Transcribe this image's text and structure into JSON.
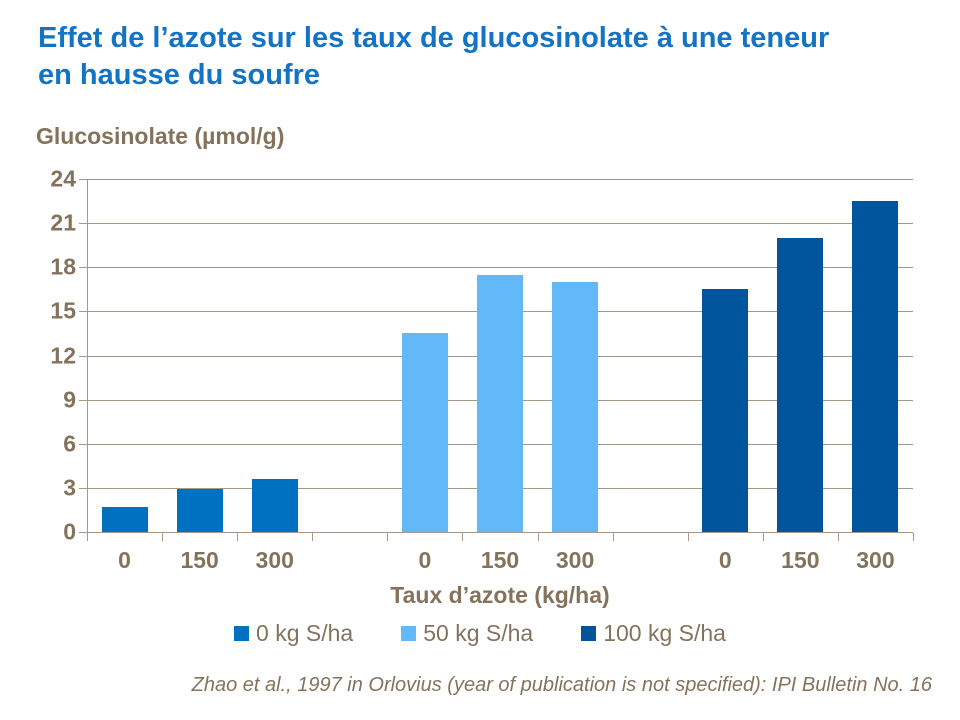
{
  "title": {
    "line1": "Effet de l’azote sur les taux de glucosinolate à une teneur",
    "line2": "en hausse du soufre"
  },
  "citation": "Zhao et al., 1997 in Orlovius (year of publication is not specified): IPI Bulletin No. 16",
  "colors": {
    "title_text": "#1373C5",
    "axis_text": "#84735C",
    "gridline": "#A59886",
    "series_blue": "#0070C0",
    "series_light_blue": "#63B9F7",
    "series_navy": "#00559C"
  },
  "chart_data": {
    "type": "bar",
    "title": "Effet de l’azote sur les taux de glucosinolate à une teneur en hausse du soufre",
    "ylabel": "Glucosinolate (µmol/g)",
    "xlabel": "Taux d’azote (kg/ha)",
    "categories": [
      "0",
      "150",
      "300"
    ],
    "series": [
      {
        "name": "0 kg S/ha",
        "color": "#0070C0",
        "values": [
          1.7,
          2.9,
          3.6
        ]
      },
      {
        "name": "50 kg S/ha",
        "color": "#63B9F7",
        "values": [
          13.5,
          17.5,
          17.0
        ]
      },
      {
        "name": "100 kg S/ha",
        "color": "#00559C",
        "values": [
          16.5,
          20.0,
          22.5
        ]
      }
    ],
    "ylim": [
      0,
      24
    ],
    "ytick_step": 3,
    "yticks": [
      0,
      3,
      6,
      9,
      12,
      15,
      18,
      21,
      24
    ],
    "grid": true,
    "legend_position": "bottom"
  }
}
